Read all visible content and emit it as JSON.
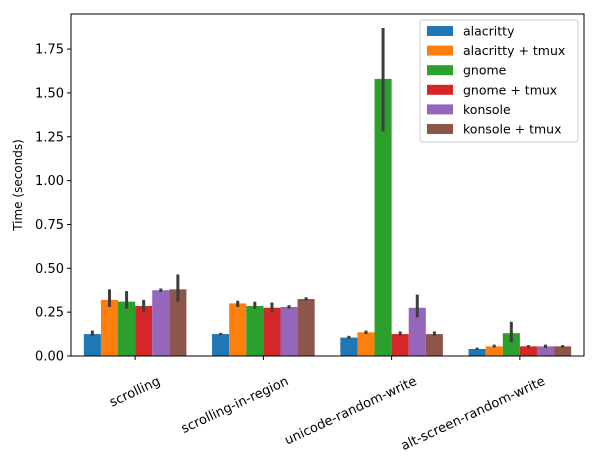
{
  "chart_data": {
    "type": "bar",
    "title": "",
    "xlabel": "",
    "ylabel": "Time (seconds)",
    "ylim": [
      0,
      1.95
    ],
    "yticks": [
      "0.00",
      "0.25",
      "0.50",
      "0.75",
      "1.00",
      "1.25",
      "1.50",
      "1.75"
    ],
    "ytick_values": [
      0,
      0.25,
      0.5,
      0.75,
      1.0,
      1.25,
      1.5,
      1.75
    ],
    "categories": [
      "scrolling",
      "scrolling-in-region",
      "unicode-random-write",
      "alt-screen-random-write"
    ],
    "legend_position": "top-right",
    "series": [
      {
        "name": "alacritty",
        "color": "#1f77b4",
        "values": [
          0.125,
          0.125,
          0.105,
          0.04
        ],
        "err_low": [
          0.115,
          0.118,
          0.098,
          0.035
        ],
        "err_high": [
          0.145,
          0.132,
          0.115,
          0.048
        ]
      },
      {
        "name": "alacritty + tmux",
        "color": "#ff7f0e",
        "values": [
          0.32,
          0.3,
          0.135,
          0.055
        ],
        "err_low": [
          0.28,
          0.28,
          0.125,
          0.048
        ],
        "err_high": [
          0.38,
          0.315,
          0.145,
          0.065
        ]
      },
      {
        "name": "gnome",
        "color": "#2ca02c",
        "values": [
          0.31,
          0.285,
          1.58,
          0.13
        ],
        "err_low": [
          0.27,
          0.27,
          1.28,
          0.08
        ],
        "err_high": [
          0.37,
          0.31,
          1.87,
          0.195
        ]
      },
      {
        "name": "gnome + tmux",
        "color": "#d62728",
        "values": [
          0.285,
          0.275,
          0.125,
          0.055
        ],
        "err_low": [
          0.25,
          0.25,
          0.115,
          0.048
        ],
        "err_high": [
          0.32,
          0.305,
          0.14,
          0.062
        ]
      },
      {
        "name": "konsole",
        "color": "#9467bd",
        "values": [
          0.375,
          0.28,
          0.275,
          0.055
        ],
        "err_low": [
          0.365,
          0.27,
          0.22,
          0.045
        ],
        "err_high": [
          0.385,
          0.29,
          0.35,
          0.065
        ]
      },
      {
        "name": "konsole + tmux",
        "color": "#8c564b",
        "values": [
          0.38,
          0.325,
          0.125,
          0.055
        ],
        "err_low": [
          0.31,
          0.315,
          0.115,
          0.048
        ],
        "err_high": [
          0.465,
          0.335,
          0.14,
          0.062
        ]
      }
    ]
  }
}
